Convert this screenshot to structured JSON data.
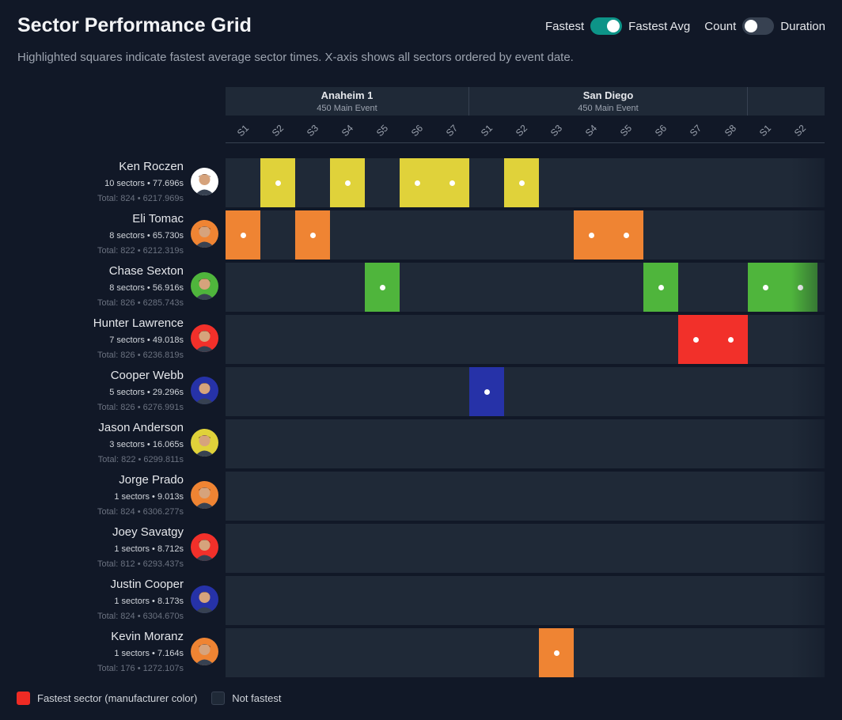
{
  "page": {
    "title": "Sector Performance Grid",
    "subtitle": "Highlighted squares indicate fastest average sector times. X-axis shows all sectors ordered by event date."
  },
  "toggles": {
    "mode_left": "Fastest",
    "mode_right": "Fastest Avg",
    "mode_on": true,
    "metric_left": "Count",
    "metric_right": "Duration",
    "metric_on": false
  },
  "events": [
    {
      "name": "Anaheim 1",
      "sub": "450 Main Event"
    },
    {
      "name": "San Diego",
      "sub": "450 Main Event"
    },
    {
      "name": "",
      "sub": ""
    }
  ],
  "sectors": [
    "S1",
    "S2",
    "S3",
    "S4",
    "S5",
    "S6",
    "S7",
    "S1",
    "S2",
    "S3",
    "S4",
    "S5",
    "S6",
    "S7",
    "S8",
    "S1",
    "S2"
  ],
  "riders": [
    {
      "name": "Ken Roczen",
      "stats": "10 sectors • 77.696s",
      "total": "Total: 824 • 6217.969s",
      "color": "#e0d23a",
      "avatar": "#ffffff",
      "fastest": [
        1,
        3,
        5,
        6,
        8
      ]
    },
    {
      "name": "Eli Tomac",
      "stats": "8 sectors • 65.730s",
      "total": "Total: 822 • 6212.319s",
      "color": "#ef8433",
      "avatar": "#ef8433",
      "fastest": [
        0,
        2,
        10,
        11
      ]
    },
    {
      "name": "Chase Sexton",
      "stats": "8 sectors • 56.916s",
      "total": "Total: 826 • 6285.743s",
      "color": "#4fb53c",
      "avatar": "#4fb53c",
      "fastest": [
        4,
        12,
        15,
        16
      ]
    },
    {
      "name": "Hunter Lawrence",
      "stats": "7 sectors • 49.018s",
      "total": "Total: 826 • 6236.819s",
      "color": "#f2302a",
      "avatar": "#f2302a",
      "fastest": [
        13,
        14
      ]
    },
    {
      "name": "Cooper Webb",
      "stats": "5 sectors • 29.296s",
      "total": "Total: 826 • 6276.991s",
      "color": "#2632a8",
      "avatar": "#2632a8",
      "fastest": [
        7
      ]
    },
    {
      "name": "Jason Anderson",
      "stats": "3 sectors • 16.065s",
      "total": "Total: 822 • 6299.811s",
      "color": "#e0d23a",
      "avatar": "#e0d23a",
      "fastest": []
    },
    {
      "name": "Jorge Prado",
      "stats": "1 sectors • 9.013s",
      "total": "Total: 824 • 6306.277s",
      "color": "#ef8433",
      "avatar": "#ef8433",
      "fastest": []
    },
    {
      "name": "Joey Savatgy",
      "stats": "1 sectors • 8.712s",
      "total": "Total: 812 • 6293.437s",
      "color": "#f2302a",
      "avatar": "#f2302a",
      "fastest": []
    },
    {
      "name": "Justin Cooper",
      "stats": "1 sectors • 8.173s",
      "total": "Total: 824 • 6304.670s",
      "color": "#2632a8",
      "avatar": "#2632a8",
      "fastest": []
    },
    {
      "name": "Kevin Moranz",
      "stats": "1 sectors • 7.164s",
      "total": "Total: 176 • 1272.107s",
      "color": "#ef8433",
      "avatar": "#ef8433",
      "fastest": [
        9
      ]
    }
  ],
  "legend": {
    "fastest": "Fastest sector (manufacturer color)",
    "not_fastest": "Not fastest"
  }
}
